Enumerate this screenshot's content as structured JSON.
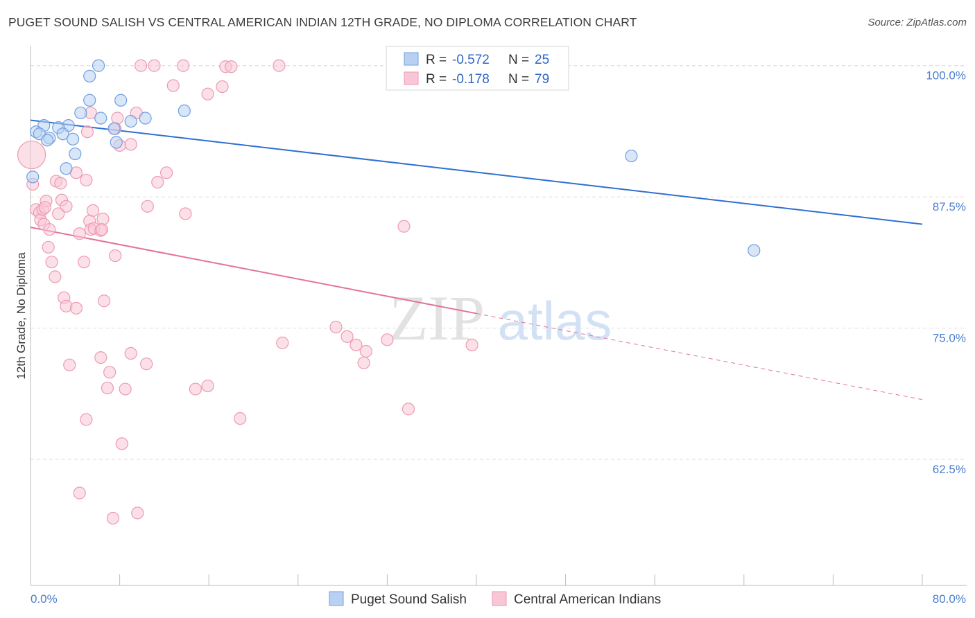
{
  "header": {
    "title": "PUGET SOUND SALISH VS CENTRAL AMERICAN INDIAN 12TH GRADE, NO DIPLOMA CORRELATION CHART",
    "source": "Source: ZipAtlas.com"
  },
  "watermark": {
    "zip": "ZIP",
    "atlas": "atlas"
  },
  "legend": {
    "series1": {
      "r_label": "R =",
      "r_value": "-0.572",
      "n_label": "N =",
      "n_value": "25"
    },
    "series2": {
      "r_label": "R =",
      "r_value": "-0.178",
      "n_label": "N =",
      "n_value": "79"
    }
  },
  "bottom_legend": {
    "series1": "Puget Sound Salish",
    "series2": "Central American Indians"
  },
  "colors": {
    "series1_fill": "#b8d1f3",
    "series1_stroke": "#6f9fe0",
    "series1_line": "#2f6fd0",
    "series2_fill": "#f9c6d6",
    "series2_stroke": "#ec9ab4",
    "series2_line": "#e3739b",
    "axis_label": "#4a7fd0",
    "grid": "#dddddd"
  },
  "chart_data": {
    "type": "scatter",
    "title": "PUGET SOUND SALISH VS CENTRAL AMERICAN INDIAN 12TH GRADE, NO DIPLOMA CORRELATION CHART",
    "xlabel": "",
    "ylabel": "12th Grade, No Diploma",
    "xlim": [
      0,
      80
    ],
    "ylim": [
      50.5,
      101.5
    ],
    "x_tick_labels": [
      "0.0%",
      "80.0%"
    ],
    "y_ticks": [
      62.5,
      75.0,
      87.5,
      100.0
    ],
    "y_tick_labels": [
      "62.5%",
      "75.0%",
      "87.5%",
      "100.0%"
    ],
    "grid": true,
    "legend_position": "top-center",
    "series": [
      {
        "name": "Puget Sound Salish",
        "points": [
          [
            6.1,
            100.0
          ],
          [
            5.3,
            99.0
          ],
          [
            5.3,
            96.7
          ],
          [
            8.1,
            96.7
          ],
          [
            13.8,
            95.7
          ],
          [
            4.5,
            95.5
          ],
          [
            3.4,
            94.3
          ],
          [
            6.3,
            95.0
          ],
          [
            10.3,
            95.0
          ],
          [
            9.0,
            94.7
          ],
          [
            1.2,
            94.3
          ],
          [
            2.5,
            94.1
          ],
          [
            7.5,
            94.0
          ],
          [
            0.5,
            93.7
          ],
          [
            0.8,
            93.5
          ],
          [
            2.9,
            93.5
          ],
          [
            1.7,
            93.1
          ],
          [
            1.5,
            92.9
          ],
          [
            3.8,
            93.0
          ],
          [
            7.7,
            92.7
          ],
          [
            4.0,
            91.6
          ],
          [
            3.2,
            90.2
          ],
          [
            0.2,
            89.4
          ],
          [
            53.9,
            91.4
          ],
          [
            64.9,
            82.4
          ]
        ],
        "regression": {
          "x0": 0,
          "y0": 94.8,
          "x1": 80,
          "y1": 84.9
        }
      },
      {
        "name": "Central American Indians",
        "points": [
          [
            0.1,
            91.5
          ],
          [
            0.2,
            88.7
          ],
          [
            0.5,
            86.3
          ],
          [
            0.8,
            86.0
          ],
          [
            0.9,
            85.3
          ],
          [
            1.1,
            86.3
          ],
          [
            1.4,
            87.1
          ],
          [
            1.2,
            84.9
          ],
          [
            1.7,
            84.4
          ],
          [
            1.6,
            82.7
          ],
          [
            1.9,
            81.3
          ],
          [
            2.2,
            79.9
          ],
          [
            2.3,
            89.0
          ],
          [
            2.7,
            88.8
          ],
          [
            2.8,
            87.2
          ],
          [
            3.2,
            86.6
          ],
          [
            2.5,
            85.9
          ],
          [
            3.0,
            77.9
          ],
          [
            3.2,
            77.1
          ],
          [
            4.1,
            76.9
          ],
          [
            3.5,
            71.5
          ],
          [
            4.4,
            84.0
          ],
          [
            4.8,
            81.3
          ],
          [
            5.0,
            89.1
          ],
          [
            4.1,
            89.8
          ],
          [
            5.6,
            86.2
          ],
          [
            5.3,
            85.2
          ],
          [
            5.4,
            84.4
          ],
          [
            5.7,
            84.5
          ],
          [
            6.3,
            84.3
          ],
          [
            6.5,
            85.4
          ],
          [
            6.4,
            84.4
          ],
          [
            6.6,
            77.6
          ],
          [
            7.6,
            81.9
          ],
          [
            6.3,
            72.2
          ],
          [
            7.1,
            70.8
          ],
          [
            6.9,
            69.3
          ],
          [
            5.0,
            66.3
          ],
          [
            8.2,
            64.0
          ],
          [
            8.5,
            69.2
          ],
          [
            7.4,
            56.9
          ],
          [
            4.4,
            59.3
          ],
          [
            9.6,
            57.4
          ],
          [
            9.0,
            72.6
          ],
          [
            10.4,
            71.6
          ],
          [
            10.5,
            86.6
          ],
          [
            11.4,
            88.9
          ],
          [
            12.2,
            89.8
          ],
          [
            13.9,
            85.9
          ],
          [
            9.5,
            95.5
          ],
          [
            7.8,
            95.0
          ],
          [
            7.6,
            94.0
          ],
          [
            8.0,
            92.4
          ],
          [
            9.0,
            92.5
          ],
          [
            5.4,
            95.5
          ],
          [
            5.1,
            93.7
          ],
          [
            9.9,
            100.0
          ],
          [
            11.1,
            100.0
          ],
          [
            13.7,
            100.0
          ],
          [
            12.8,
            98.1
          ],
          [
            17.5,
            99.9
          ],
          [
            18.0,
            99.9
          ],
          [
            17.2,
            98.0
          ],
          [
            15.9,
            97.3
          ],
          [
            22.3,
            100.0
          ],
          [
            14.8,
            69.2
          ],
          [
            15.9,
            69.5
          ],
          [
            18.8,
            66.4
          ],
          [
            22.6,
            73.6
          ],
          [
            27.4,
            75.1
          ],
          [
            28.4,
            74.2
          ],
          [
            29.2,
            73.4
          ],
          [
            30.1,
            72.8
          ],
          [
            29.9,
            71.7
          ],
          [
            32.0,
            73.9
          ],
          [
            33.9,
            67.3
          ],
          [
            33.5,
            84.7
          ],
          [
            39.6,
            73.4
          ],
          [
            1.3,
            86.5
          ]
        ],
        "regression": {
          "x0": 0,
          "y0": 84.6,
          "x1": 40.0,
          "y1": 76.4
        },
        "regression_extension": {
          "x1": 80,
          "y1": 68.2
        }
      }
    ]
  }
}
